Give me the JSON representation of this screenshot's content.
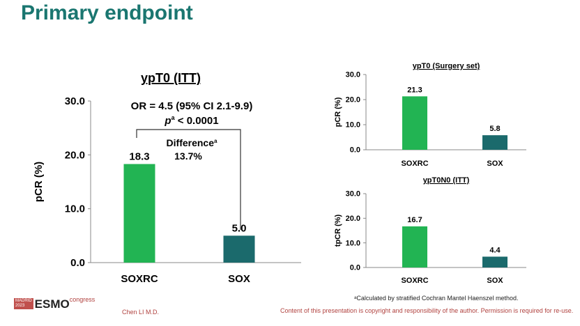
{
  "slide": {
    "title": "Primary endpoint",
    "footnote": "ᵃCalculated by stratified Cochran Mantel Haenszel method.",
    "author": "Chen LI M.D.",
    "copyright": "Content of this presentation is copyright and responsibility of the author. Permission is required for re-use.",
    "logo": {
      "city": "MADRID",
      "year": "2023",
      "brand": "ESMO",
      "suffix": "congress"
    }
  },
  "colors": {
    "title": "#1a7670",
    "soxrc": "#22b453",
    "sox": "#1b6a6c",
    "footer_red": "#b0413e"
  },
  "chart_data": [
    {
      "type": "bar",
      "title": "ypT0 (ITT)",
      "ylabel": "pCR (%)",
      "categories": [
        "SOXRC",
        "SOX"
      ],
      "values": [
        18.3,
        5.0
      ],
      "value_labels": [
        "18.3",
        "5.0"
      ],
      "ylim": [
        0,
        30
      ],
      "yticks": [
        "0.0",
        "10.0",
        "20.0",
        "30.0"
      ],
      "annotations": {
        "or": "OR = 4.5 (95% CI 2.1-9.9)",
        "p_prefix": "p",
        "p_sup": "a",
        "p_value": " < 0.0001",
        "difference": "Difference",
        "difference_sup": "a",
        "difference_value": "13.7%"
      }
    },
    {
      "type": "bar",
      "title": "ypT0 (Surgery set)",
      "ylabel": "pCR (%)",
      "categories": [
        "SOXRC",
        "SOX"
      ],
      "values": [
        21.3,
        5.8
      ],
      "value_labels": [
        "21.3",
        "5.8"
      ],
      "ylim": [
        0,
        30
      ],
      "yticks": [
        "0.0",
        "10.0",
        "20.0",
        "30.0"
      ]
    },
    {
      "type": "bar",
      "title": "ypT0N0 (ITT)",
      "ylabel": "tpCR (%)",
      "categories": [
        "SOXRC",
        "SOX"
      ],
      "values": [
        16.7,
        4.4
      ],
      "value_labels": [
        "16.7",
        "4.4"
      ],
      "ylim": [
        0,
        30
      ],
      "yticks": [
        "0.0",
        "10.0",
        "20.0",
        "30.0"
      ]
    }
  ]
}
